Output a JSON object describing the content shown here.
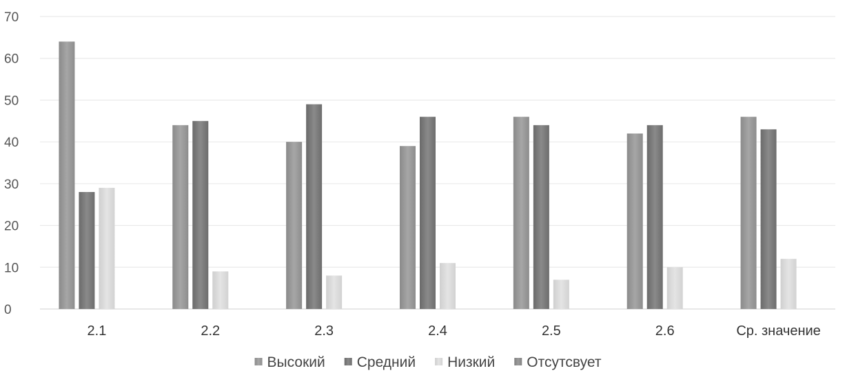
{
  "chart_data": {
    "type": "bar",
    "title": "",
    "xlabel": "",
    "ylabel": "",
    "ylim": [
      0,
      70
    ],
    "yticks": [
      "0",
      "10",
      "20",
      "30",
      "40",
      "50",
      "60",
      "70"
    ],
    "categories": [
      "2.1",
      "2.2",
      "2.3",
      "2.4",
      "2.5",
      "2.6",
      "Ср. значение"
    ],
    "series": [
      {
        "name": "Высокий",
        "color": "#9a9a9a",
        "values": [
          64,
          44,
          40,
          39,
          46,
          42,
          46
        ]
      },
      {
        "name": "Средний",
        "color": "#7c7c7c",
        "values": [
          28,
          45,
          49,
          46,
          44,
          44,
          43
        ]
      },
      {
        "name": "Низкий",
        "color": "#d9d9d9",
        "values": [
          29,
          9,
          8,
          11,
          7,
          10,
          12
        ]
      },
      {
        "name": "Отсутсвует",
        "color": "#8f8f8f",
        "values": [
          0,
          0,
          0,
          0,
          0,
          0,
          0
        ]
      }
    ],
    "grid": true,
    "legend_position": "bottom"
  }
}
